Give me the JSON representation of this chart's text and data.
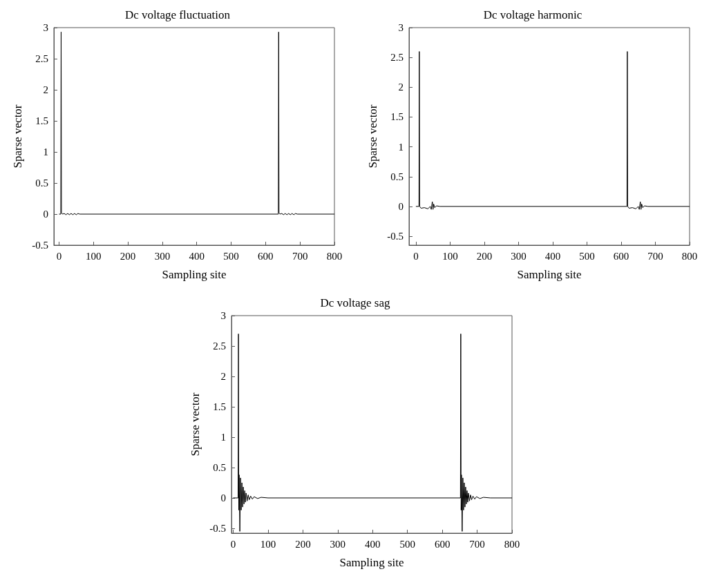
{
  "chart_data": [
    {
      "type": "line",
      "title": "Dc voltage fluctuation",
      "xlabel": "Sampling site",
      "ylabel": "Sparse vector",
      "xlim": [
        -15,
        800
      ],
      "xticks": [
        0,
        100,
        200,
        300,
        400,
        500,
        600,
        700,
        800
      ],
      "ylim": [
        -0.5,
        3
      ],
      "yticks": [
        -0.5,
        0,
        0.5,
        1,
        1.5,
        2,
        2.5,
        3
      ],
      "grid": false,
      "series": [
        {
          "color": "#000000",
          "x": [
            0,
            5,
            6,
            7,
            10,
            15,
            20,
            25,
            30,
            35,
            40,
            45,
            50,
            55,
            60,
            637,
            638,
            639,
            642,
            647,
            652,
            657,
            662,
            667,
            672,
            677,
            682,
            687,
            692,
            800
          ],
          "values": [
            0,
            0,
            2.93,
            0.02,
            0,
            0.01,
            -0.01,
            0.01,
            -0.01,
            0.01,
            -0.01,
            0.01,
            -0.01,
            0.01,
            0,
            0,
            2.93,
            0.02,
            0,
            0.01,
            -0.01,
            0.01,
            -0.01,
            0.01,
            -0.01,
            0.01,
            -0.01,
            0.01,
            0,
            0
          ]
        }
      ]
    },
    {
      "type": "line",
      "title": "Dc voltage harmonic",
      "xlabel": "Sampling site",
      "ylabel": "Sparse vector",
      "xlim": [
        -20,
        800
      ],
      "xticks": [
        0,
        100,
        200,
        300,
        400,
        500,
        600,
        700,
        800
      ],
      "ylim": [
        -0.65,
        3
      ],
      "yticks": [
        -0.5,
        0,
        0.5,
        1,
        1.5,
        2,
        2.5,
        3
      ],
      "grid": false,
      "series": [
        {
          "color": "#000000",
          "x": [
            0,
            9,
            10,
            11,
            15,
            25,
            35,
            42,
            45,
            48,
            50,
            52,
            55,
            60,
            70,
            617,
            618,
            619,
            623,
            633,
            643,
            650,
            653,
            656,
            658,
            660,
            663,
            668,
            678,
            800
          ],
          "values": [
            0,
            0,
            2.6,
            0,
            -0.03,
            -0.02,
            -0.04,
            0,
            -0.05,
            0.08,
            -0.05,
            0.04,
            -0.02,
            0.01,
            0,
            0,
            2.6,
            0,
            -0.03,
            -0.02,
            -0.04,
            0,
            -0.05,
            0.08,
            -0.05,
            0.04,
            -0.02,
            0.01,
            0,
            0
          ]
        }
      ]
    },
    {
      "type": "line",
      "title": "Dc voltage sag",
      "xlabel": "Sampling site",
      "ylabel": "Sparse vector",
      "xlim": [
        -5,
        800
      ],
      "xticks": [
        0,
        100,
        200,
        300,
        400,
        500,
        600,
        700,
        800
      ],
      "ylim": [
        -0.58,
        3
      ],
      "yticks": [
        -0.5,
        0,
        0.5,
        1,
        1.5,
        2,
        2.5,
        3
      ],
      "grid": false,
      "series": [
        {
          "color": "#000000",
          "x": [
            0,
            14,
            15,
            16,
            17,
            19,
            21,
            23,
            25,
            27,
            29,
            31,
            33,
            35,
            37,
            40,
            43,
            46,
            50,
            55,
            60,
            70,
            80,
            100,
            652,
            653,
            654,
            655,
            657,
            659,
            661,
            663,
            665,
            667,
            669,
            671,
            673,
            675,
            678,
            681,
            684,
            688,
            693,
            698,
            708,
            718,
            738,
            800
          ],
          "values": [
            0,
            0,
            2.7,
            -0.2,
            0.38,
            -0.55,
            0.33,
            -0.2,
            0.25,
            -0.15,
            0.18,
            -0.1,
            0.12,
            -0.07,
            0.08,
            -0.05,
            0.05,
            -0.03,
            0.03,
            -0.02,
            0.02,
            -0.01,
            0.01,
            0,
            0,
            2.7,
            -0.2,
            0.38,
            -0.55,
            0.33,
            -0.2,
            0.25,
            -0.15,
            0.18,
            -0.1,
            0.12,
            -0.07,
            0.08,
            -0.05,
            0.05,
            -0.03,
            0.03,
            -0.02,
            0.02,
            -0.01,
            0.01,
            0,
            0
          ]
        }
      ]
    }
  ]
}
